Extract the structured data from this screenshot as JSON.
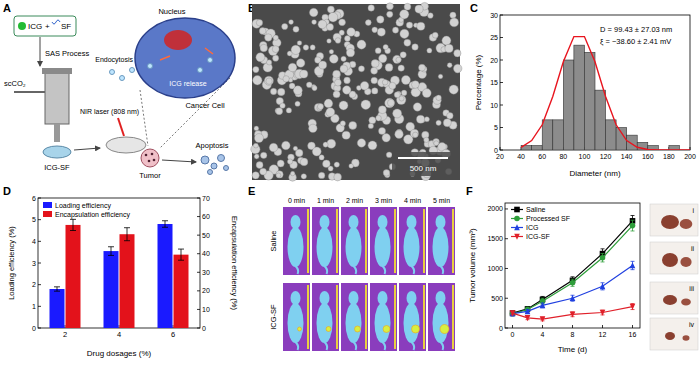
{
  "panel_labels": [
    "A",
    "B",
    "C",
    "D",
    "E",
    "F"
  ],
  "schematic": {
    "icg": "ICG",
    "plus": "+",
    "sf": "SF",
    "process": "SAS Process",
    "fluid": "scCO₂",
    "product": "ICG-SF",
    "laser": "NIR laser (808 nm)",
    "endocytosis": "Endocytosis",
    "nucleus": "Nucleus",
    "release": "ICG release",
    "cell": "Cancer Cell",
    "tumor": "Tumor",
    "apoptosis": "Apoptosis"
  },
  "sem": {
    "scale_bar": "500 nm"
  },
  "thermal": {
    "times": [
      "0 min",
      "1 min",
      "2 min",
      "3 min",
      "4 min",
      "5 min"
    ],
    "rows": [
      "Saline",
      "ICG-SF"
    ]
  },
  "tumor_photos": {
    "labels": [
      "i",
      "ii",
      "iii",
      "iv"
    ]
  },
  "chart_data": [
    {
      "type": "histogram",
      "xlabel": "Diameter (nm)",
      "ylabel": "Percentage (%)",
      "bins": [
        40,
        50,
        60,
        70,
        80,
        90,
        100,
        110,
        120,
        130,
        140,
        150,
        160,
        170,
        180,
        190
      ],
      "values": [
        1.0,
        1.0,
        6.7,
        6.7,
        20.0,
        23.3,
        21.7,
        13.3,
        6.7,
        5.0,
        3.3,
        1.7,
        1.0,
        0,
        1.0
      ],
      "color": "#8c8c8c",
      "fit_curve": {
        "x": [
          40,
          50,
          60,
          70,
          80,
          90,
          100,
          110,
          120,
          130,
          140,
          150,
          160,
          170,
          180,
          190,
          200
        ],
        "values": [
          0.6,
          2.1,
          5.6,
          11.9,
          19.6,
          25.2,
          25.2,
          19.6,
          11.9,
          5.6,
          2.1,
          0.6,
          0.1,
          0,
          0,
          0,
          0
        ],
        "color": "#e8141e"
      },
      "annotations": [
        "D = 99.43 ± 27.03 nm",
        "ξ = −38.60 ± 2.41 mV"
      ],
      "xlim": [
        20,
        200
      ],
      "xticks": [
        20,
        40,
        60,
        80,
        100,
        120,
        140,
        160,
        180,
        200
      ],
      "ylim": [
        0,
        30
      ],
      "yticks": [
        0,
        5,
        10,
        15,
        20,
        25,
        30
      ]
    },
    {
      "type": "bar",
      "xlabel": "Drug dosages (%)",
      "ylabel": "Loading efficiency (%)",
      "y2label": "Encapsulation efficiency (%)",
      "categories": [
        "2",
        "4",
        "6"
      ],
      "ylim": [
        0,
        6
      ],
      "yticks": [
        0,
        1,
        2,
        3,
        4,
        5,
        6
      ],
      "y2lim": [
        0,
        70
      ],
      "y2ticks": [
        0,
        10,
        20,
        30,
        40,
        50,
        60,
        70
      ],
      "legend": "upper left",
      "series": [
        {
          "name": "Loading efficiency",
          "color": "#1a1aff",
          "values": [
            1.8,
            3.55,
            4.8
          ],
          "errors": [
            0.1,
            0.2,
            0.15
          ]
        },
        {
          "name": "Encapsulation efficiency",
          "color": "#e3121b",
          "values": [
            55.5,
            50.5,
            39.5
          ],
          "errors": [
            3,
            3.5,
            3
          ],
          "axis": "y2"
        }
      ]
    },
    {
      "type": "line",
      "xlabel": "Time (d)",
      "ylabel": "Tumor volume (mm³)",
      "x": [
        0,
        2,
        4,
        8,
        12,
        16
      ],
      "xlim": [
        -1,
        17
      ],
      "xticks": [
        0,
        4,
        8,
        12,
        16
      ],
      "ylim": [
        0,
        2100
      ],
      "yticks": [
        0,
        500,
        1000,
        1500,
        2000
      ],
      "legend": "upper left",
      "series": [
        {
          "name": "Saline",
          "color": "#000000",
          "marker": "square",
          "values": [
            250,
            320,
            480,
            800,
            1250,
            1800
          ],
          "errors": [
            30,
            40,
            50,
            60,
            80,
            90
          ]
        },
        {
          "name": "Processed SF",
          "color": "#2e9e3a",
          "marker": "circle",
          "values": [
            240,
            310,
            450,
            760,
            1180,
            1720
          ],
          "errors": [
            30,
            40,
            50,
            60,
            70,
            90
          ]
        },
        {
          "name": "ICG",
          "color": "#2040e0",
          "marker": "triangle",
          "values": [
            240,
            280,
            380,
            500,
            700,
            1050
          ],
          "errors": [
            30,
            30,
            40,
            50,
            60,
            70
          ]
        },
        {
          "name": "ICG-SF",
          "color": "#e0202a",
          "marker": "triangle-down",
          "values": [
            250,
            170,
            150,
            230,
            260,
            360
          ],
          "errors": [
            30,
            30,
            30,
            40,
            40,
            50
          ]
        }
      ]
    }
  ]
}
